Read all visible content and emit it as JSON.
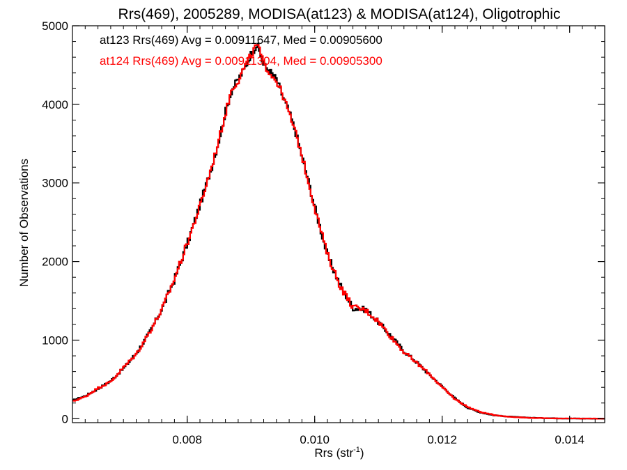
{
  "chart_data": {
    "type": "line",
    "title": "Rrs(469), 2005289, MODISA(at123) & MODISA(at124), Oligotrophic",
    "xlabel": "Rrs (str",
    "xlabel_sup": "-1",
    "xlabel_end": ")",
    "ylabel": "Number of Observations",
    "xlim": [
      0.0062,
      0.01455
    ],
    "ylim": [
      -50,
      5000
    ],
    "xticks": [
      0.008,
      0.01,
      0.012,
      0.014
    ],
    "xtick_labels": [
      "0.008",
      "0.010",
      "0.012",
      "0.014"
    ],
    "yticks": [
      0,
      1000,
      2000,
      3000,
      4000,
      5000
    ],
    "ytick_labels": [
      "0",
      "1000",
      "2000",
      "3000",
      "4000",
      "5000"
    ],
    "colors": {
      "at123": "#000000",
      "at124": "#ff0000"
    },
    "series": [
      {
        "key": "at123",
        "label": "at123 Rrs(469) Avg = 0.00911647, Med = 0.00905600",
        "color": "#000000",
        "x": [
          0.0062,
          0.0064,
          0.0066,
          0.0068,
          0.007,
          0.0072,
          0.0074,
          0.0076,
          0.0078,
          0.008,
          0.0082,
          0.0084,
          0.0085,
          0.0086,
          0.0087,
          0.0088,
          0.0089,
          0.009,
          0.0091,
          0.0092,
          0.0093,
          0.0094,
          0.0095,
          0.0096,
          0.0097,
          0.0098,
          0.0099,
          0.01,
          0.0102,
          0.0104,
          0.0106,
          0.0108,
          0.011,
          0.0112,
          0.0114,
          0.0116,
          0.0118,
          0.012,
          0.0122,
          0.0124,
          0.0126,
          0.0128,
          0.013,
          0.0132,
          0.0134,
          0.0136,
          0.0138,
          0.014,
          0.0142,
          0.01455
        ],
        "y": [
          230,
          290,
          380,
          480,
          640,
          830,
          1080,
          1390,
          1770,
          2220,
          2720,
          3240,
          3550,
          3900,
          4180,
          4320,
          4450,
          4640,
          4760,
          4500,
          4420,
          4320,
          4100,
          3900,
          3650,
          3340,
          3030,
          2700,
          2080,
          1700,
          1410,
          1390,
          1230,
          1050,
          860,
          720,
          560,
          410,
          260,
          140,
          80,
          45,
          30,
          20,
          12,
          8,
          5,
          3,
          2,
          1
        ]
      },
      {
        "key": "at124",
        "label": "at124 Rrs(469) Avg = 0.00911304, Med = 0.00905300",
        "color": "#ff0000",
        "x": [
          0.0062,
          0.0064,
          0.0066,
          0.0068,
          0.007,
          0.0072,
          0.0074,
          0.0076,
          0.0078,
          0.008,
          0.0082,
          0.0084,
          0.0085,
          0.0086,
          0.0087,
          0.0088,
          0.0089,
          0.009,
          0.0091,
          0.0092,
          0.0093,
          0.0094,
          0.0095,
          0.0096,
          0.0097,
          0.0098,
          0.0099,
          0.01,
          0.0102,
          0.0104,
          0.0106,
          0.0108,
          0.011,
          0.0112,
          0.0114,
          0.0116,
          0.0118,
          0.012,
          0.0122,
          0.0124,
          0.0126,
          0.0128,
          0.013,
          0.0132,
          0.0134,
          0.0136,
          0.0138,
          0.014,
          0.0142,
          0.01455
        ],
        "y": [
          220,
          280,
          390,
          470,
          650,
          820,
          1090,
          1380,
          1780,
          2230,
          2700,
          3250,
          3560,
          3880,
          4200,
          4300,
          4480,
          4620,
          4770,
          4520,
          4400,
          4300,
          4120,
          3880,
          3640,
          3350,
          3020,
          2690,
          2090,
          1690,
          1420,
          1380,
          1240,
          1040,
          850,
          710,
          570,
          400,
          250,
          150,
          85,
          50,
          28,
          18,
          10,
          7,
          4,
          3,
          2,
          1
        ]
      }
    ]
  }
}
